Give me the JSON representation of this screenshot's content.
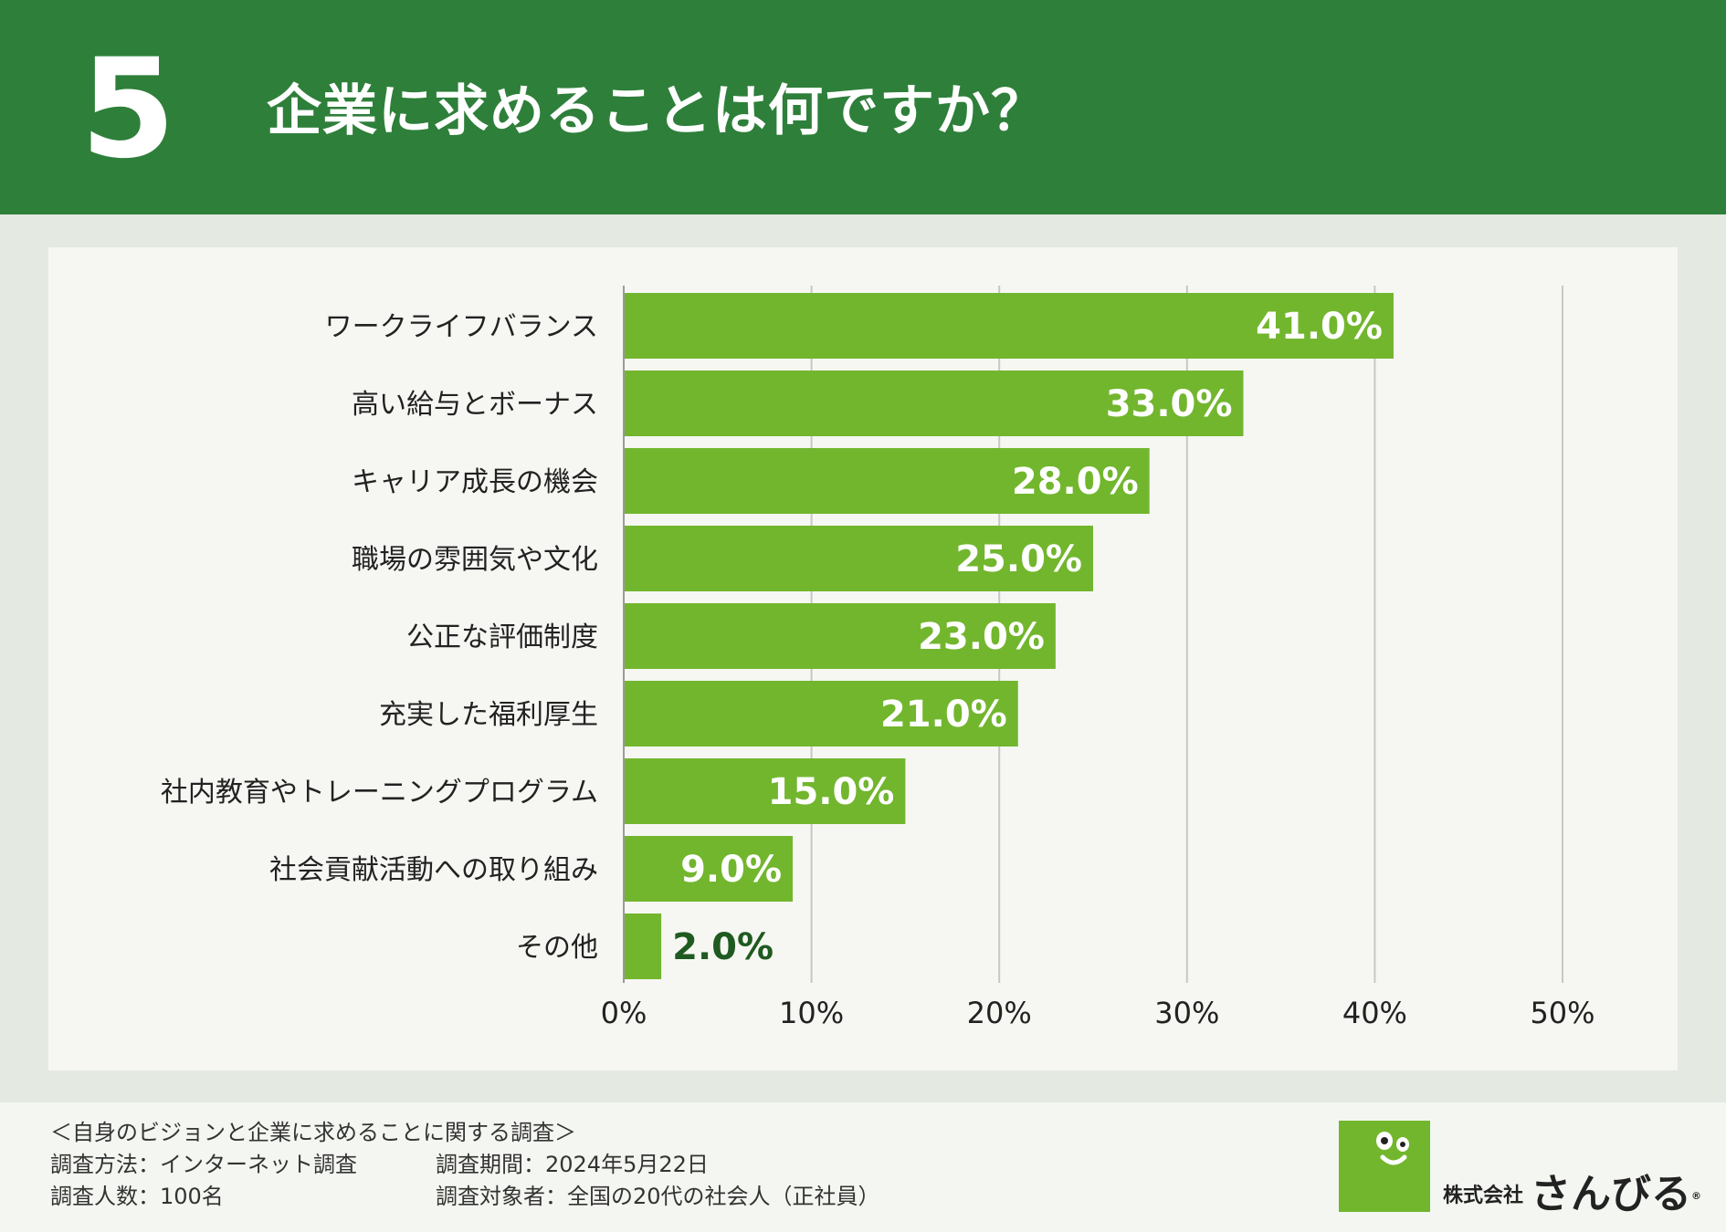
{
  "header": {
    "number": "5",
    "title": "企業に求めることは何ですか？"
  },
  "colors": {
    "header_bg": "#2e7f3a",
    "bar": "#72b62e",
    "value_label_inside": "#ffffff",
    "value_label_outside": "#1f5a20"
  },
  "chart_data": {
    "type": "bar",
    "orientation": "horizontal",
    "categories": [
      "ワークライフバランス",
      "高い給与とボーナス",
      "キャリア成長の機会",
      "職場の雰囲気や文化",
      "公正な評価制度",
      "充実した福利厚生",
      "社内教育やトレーニングプログラム",
      "社会貢献活動への取り組み",
      "その他"
    ],
    "values": [
      41.0,
      33.0,
      28.0,
      25.0,
      23.0,
      21.0,
      15.0,
      9.0,
      2.0
    ],
    "value_labels": [
      "41.0%",
      "33.0%",
      "28.0%",
      "25.0%",
      "23.0%",
      "21.0%",
      "15.0%",
      "9.0%",
      "2.0%"
    ],
    "xlim": [
      0,
      50
    ],
    "xticks": [
      0,
      10,
      20,
      30,
      40,
      50
    ],
    "xtick_labels": [
      "0%",
      "10%",
      "20%",
      "30%",
      "40%",
      "50%"
    ],
    "grid": true
  },
  "footer": {
    "survey_title": "＜自身のビジョンと企業に求めることに関する調査＞",
    "method": "調査方法：インターネット調査",
    "period": "調査期間：2024年5月22日",
    "sample": "調査人数：100名",
    "target": "調査対象者：全国の20代の社会人（正社員）"
  },
  "logo": {
    "corp": "株式会社",
    "name": "さんびる",
    "registered": "®"
  }
}
